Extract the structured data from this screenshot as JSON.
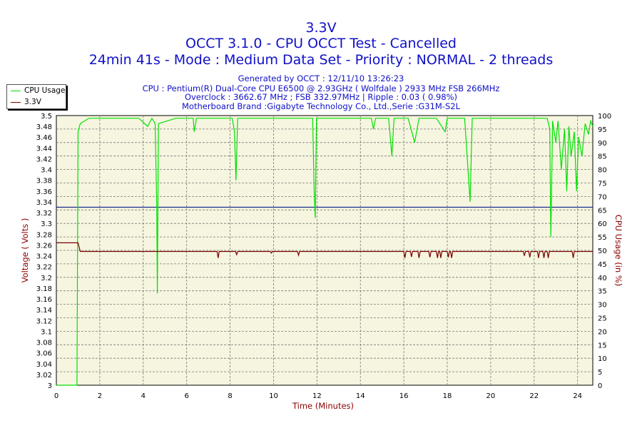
{
  "title": "3.3V",
  "subtitle1": "OCCT 3.1.0 - CPU OCCT Test - Cancelled",
  "subtitle2": "24min 41s - Mode : Medium Data Set - Priority : NORMAL - 2 threads",
  "info": [
    "Generated by OCCT : 12/11/10 13:26:23",
    "CPU : Pentium(R) Dual-Core CPU E6500 @ 2.93GHz ( Wolfdale ) 2933 MHz FSB 266MHz",
    "Overclock : 3662.67 MHz ; FSB 332.97MHz | Ripple : 0.03 ( 0.98%)",
    "Motherboard Brand :Gigabyte Technology Co., Ltd.,Serie :G31M-S2L"
  ],
  "legend": [
    {
      "label": "CPU Usage",
      "color": "#00e000"
    },
    {
      "label": "3.3V",
      "color": "#7a0000"
    }
  ],
  "chart_data": {
    "type": "line",
    "xlabel": "Time (Minutes)",
    "ylabel_left": "Voltage ( Volts )",
    "ylabel_right": "CPU Usage (in %)",
    "xlim": [
      0,
      24.7
    ],
    "ylim_left": [
      3.0,
      3.5
    ],
    "ylim_right": [
      0,
      100
    ],
    "x_ticks": [
      0,
      2,
      4,
      6,
      8,
      10,
      12,
      14,
      16,
      18,
      20,
      22,
      24
    ],
    "y_ticks_left": [
      "3",
      "3.02",
      "3.04",
      "3.06",
      "3.08",
      "3.1",
      "3.12",
      "3.14",
      "3.16",
      "3.18",
      "3.2",
      "3.22",
      "3.24",
      "3.26",
      "3.28",
      "3.3",
      "3.32",
      "3.34",
      "3.36",
      "3.38",
      "3.4",
      "3.42",
      "3.44",
      "3.46",
      "3.48",
      "3.5"
    ],
    "y_ticks_right": [
      0,
      5,
      10,
      15,
      20,
      25,
      30,
      35,
      40,
      45,
      50,
      55,
      60,
      65,
      70,
      75,
      80,
      85,
      90,
      95,
      100
    ],
    "grid": true,
    "reference_line": {
      "y": 3.33,
      "axis": "left",
      "color": "#1a2a8c"
    },
    "series": [
      {
        "name": "CPU Usage",
        "axis": "right",
        "color": "#00e000",
        "points": [
          [
            0,
            0
          ],
          [
            0.95,
            0
          ],
          [
            1.0,
            94
          ],
          [
            1.1,
            97
          ],
          [
            1.5,
            99
          ],
          [
            2.5,
            99
          ],
          [
            3.8,
            99
          ],
          [
            4.2,
            96
          ],
          [
            4.4,
            99
          ],
          [
            4.55,
            97
          ],
          [
            4.62,
            67
          ],
          [
            4.65,
            34
          ],
          [
            4.7,
            97
          ],
          [
            5.5,
            99
          ],
          [
            6.3,
            99
          ],
          [
            6.35,
            94
          ],
          [
            6.45,
            99
          ],
          [
            7.5,
            99
          ],
          [
            8.1,
            99
          ],
          [
            8.2,
            94
          ],
          [
            8.27,
            76
          ],
          [
            8.35,
            99
          ],
          [
            9.0,
            99
          ],
          [
            9.5,
            99
          ],
          [
            10.5,
            99
          ],
          [
            11.5,
            99
          ],
          [
            11.8,
            99
          ],
          [
            11.87,
            72
          ],
          [
            11.92,
            62
          ],
          [
            11.98,
            99
          ],
          [
            12.5,
            99
          ],
          [
            13.5,
            99
          ],
          [
            14.5,
            99
          ],
          [
            14.6,
            95
          ],
          [
            14.7,
            99
          ],
          [
            15.3,
            99
          ],
          [
            15.45,
            85
          ],
          [
            15.55,
            99
          ],
          [
            16.2,
            99
          ],
          [
            16.5,
            90
          ],
          [
            16.7,
            99
          ],
          [
            17.5,
            99
          ],
          [
            17.9,
            94
          ],
          [
            18.0,
            99
          ],
          [
            18.8,
            99
          ],
          [
            19.05,
            68
          ],
          [
            19.15,
            99
          ],
          [
            20.5,
            99
          ],
          [
            21.5,
            99
          ],
          [
            22.6,
            99
          ],
          [
            22.72,
            95
          ],
          [
            22.77,
            55
          ],
          [
            22.85,
            98
          ],
          [
            23.0,
            90
          ],
          [
            23.1,
            98
          ],
          [
            23.25,
            80
          ],
          [
            23.4,
            95
          ],
          [
            23.5,
            72
          ],
          [
            23.6,
            96
          ],
          [
            23.7,
            85
          ],
          [
            23.85,
            94
          ],
          [
            23.95,
            72
          ],
          [
            24.05,
            92
          ],
          [
            24.2,
            85
          ],
          [
            24.35,
            97
          ],
          [
            24.5,
            93
          ],
          [
            24.6,
            98
          ],
          [
            24.7,
            96
          ]
        ]
      },
      {
        "name": "3.3V",
        "axis": "left",
        "color": "#7a0000",
        "base": 3.248,
        "initial": [
          [
            0,
            3.264
          ],
          [
            1.0,
            3.264
          ],
          [
            1.1,
            3.248
          ]
        ],
        "dips": [
          [
            7.45,
            3.236
          ],
          [
            8.3,
            3.242
          ],
          [
            9.9,
            3.245
          ],
          [
            11.15,
            3.241
          ],
          [
            16.05,
            3.236
          ],
          [
            16.35,
            3.238
          ],
          [
            16.7,
            3.236
          ],
          [
            17.2,
            3.237
          ],
          [
            17.55,
            3.236
          ],
          [
            17.7,
            3.236
          ],
          [
            18.05,
            3.237
          ],
          [
            18.2,
            3.236
          ],
          [
            21.55,
            3.24
          ],
          [
            21.8,
            3.237
          ],
          [
            22.2,
            3.236
          ],
          [
            22.45,
            3.236
          ],
          [
            22.65,
            3.236
          ],
          [
            23.8,
            3.236
          ]
        ]
      }
    ]
  }
}
